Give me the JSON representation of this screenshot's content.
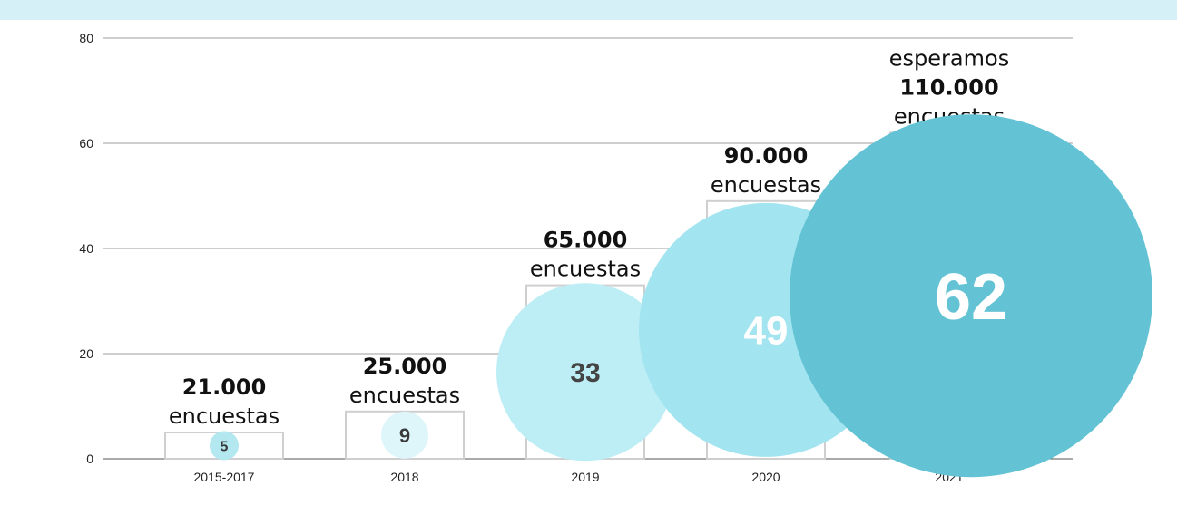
{
  "colors": {
    "band": "#d5f1f7",
    "grid": "#9e9e9e",
    "bar_stroke": "#cfcfcf",
    "axis": "#555555"
  },
  "chart_data": {
    "type": "bar",
    "categories": [
      "2015-2017",
      "2018",
      "2019",
      "2020",
      "2021"
    ],
    "values": [
      5,
      9,
      33,
      49,
      62
    ],
    "bubble_colors": [
      "#b3e8f0",
      "#def6fa",
      "#bdeef6",
      "#a2e4ef",
      "#63c3d4"
    ],
    "bubble_label_colors": [
      "#3a3a3a",
      "#3a3a3a",
      "#444444",
      "#ffffff",
      "#ffffff"
    ],
    "ylim": [
      0,
      80
    ],
    "yticks": [
      0,
      20,
      40,
      60,
      80
    ],
    "grid": true,
    "annotations": [
      {
        "lines": [
          {
            "text": "21.000",
            "bold": true
          },
          {
            "text": "encuestas",
            "bold": false
          }
        ]
      },
      {
        "lines": [
          {
            "text": "25.000",
            "bold": true
          },
          {
            "text": "encuestas",
            "bold": false
          }
        ]
      },
      {
        "lines": [
          {
            "text": "65.000",
            "bold": true
          },
          {
            "text": "encuestas",
            "bold": false
          }
        ]
      },
      {
        "lines": [
          {
            "text": "90.000",
            "bold": true
          },
          {
            "text": "encuestas",
            "bold": false
          }
        ]
      },
      {
        "lines": [
          {
            "text": "esperamos",
            "bold": false
          },
          {
            "text": "110.000",
            "bold": true
          },
          {
            "text": "encuestas",
            "bold": false
          }
        ]
      }
    ],
    "title": "",
    "xlabel": "",
    "ylabel": ""
  }
}
